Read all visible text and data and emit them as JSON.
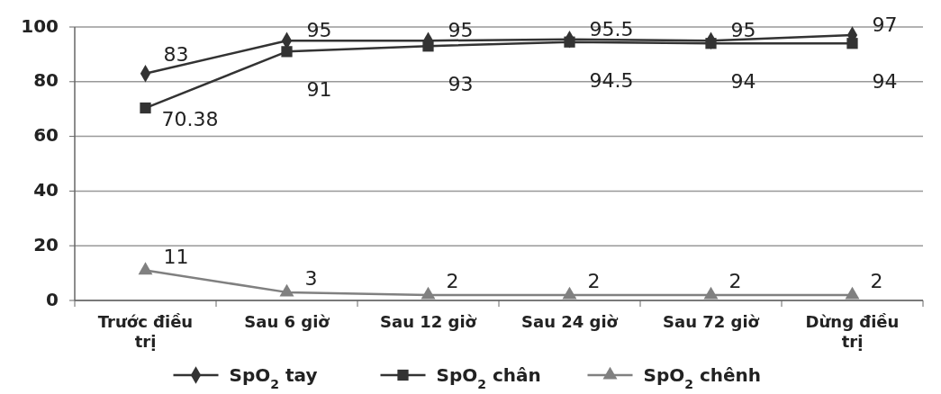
{
  "chart_data": {
    "type": "line",
    "categories": [
      "Trước điều trị",
      "Sau 6 giờ",
      "Sau 12 giờ",
      "Sau 24 giờ",
      "Sau 72 giờ",
      "Dừng điều trị"
    ],
    "series": [
      {
        "name": "SpO$_{2}$ tay",
        "color": "#333333",
        "marker": "diamond",
        "values": [
          83,
          95,
          95,
          95.5,
          95,
          97
        ]
      },
      {
        "name": "SpO$_{2}$ chân",
        "color": "#333333",
        "marker": "square",
        "values": [
          70.38,
          91,
          93,
          94.5,
          94,
          94
        ]
      },
      {
        "name": "SpO$_{2}$ chênh",
        "color": "#808080",
        "marker": "triangle",
        "values": [
          11,
          3,
          2,
          2,
          2,
          2
        ]
      }
    ],
    "ylim": [
      0,
      100
    ],
    "yticks": [
      0,
      20,
      40,
      60,
      80,
      100
    ],
    "grid": "y",
    "legend": "bottom",
    "data_labels": true
  }
}
